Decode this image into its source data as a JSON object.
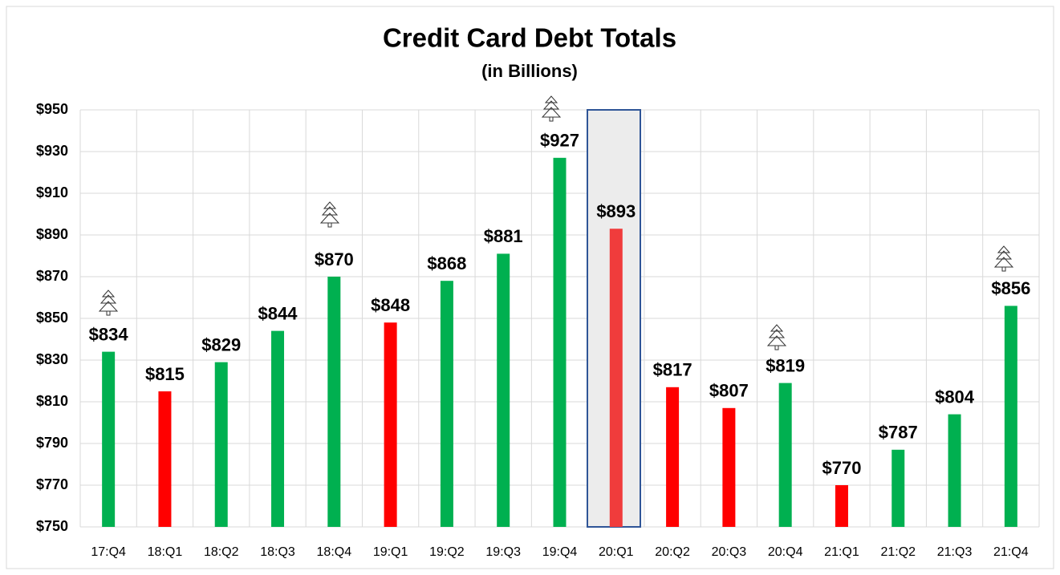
{
  "chart_data": {
    "type": "bar",
    "title": "Credit Card Debt Totals",
    "subtitle": "(in Billions)",
    "categories": [
      "17:Q4",
      "18:Q1",
      "18:Q2",
      "18:Q3",
      "18:Q4",
      "19:Q1",
      "19:Q2",
      "19:Q3",
      "19:Q4",
      "20:Q1",
      "20:Q2",
      "20:Q3",
      "20:Q4",
      "21:Q1",
      "21:Q2",
      "21:Q3",
      "21:Q4"
    ],
    "values": [
      834,
      815,
      829,
      844,
      870,
      848,
      868,
      881,
      927,
      893,
      817,
      807,
      819,
      770,
      787,
      804,
      856
    ],
    "value_labels": [
      "$834",
      "$815",
      "$829",
      "$844",
      "$870",
      "$848",
      "$868",
      "$881",
      "$927",
      "$893",
      "$817",
      "$807",
      "$819",
      "$770",
      "$787",
      "$804",
      "$856"
    ],
    "colors": [
      "#00b050",
      "#ff0000",
      "#00b050",
      "#00b050",
      "#00b050",
      "#ff0000",
      "#00b050",
      "#00b050",
      "#00b050",
      "#f03c3c",
      "#ff0000",
      "#ff0000",
      "#00b050",
      "#ff0000",
      "#00b050",
      "#00b050",
      "#00b050"
    ],
    "ylim": [
      750,
      950
    ],
    "yticks": [
      {
        "value": 750,
        "label": "$750"
      },
      {
        "value": 770,
        "label": "$770"
      },
      {
        "value": 790,
        "label": "$790"
      },
      {
        "value": 810,
        "label": "$810"
      },
      {
        "value": 830,
        "label": "$830"
      },
      {
        "value": 850,
        "label": "$850"
      },
      {
        "value": 870,
        "label": "$870"
      },
      {
        "value": 890,
        "label": "$890"
      },
      {
        "value": 910,
        "label": "$910"
      },
      {
        "value": 930,
        "label": "$930"
      },
      {
        "value": 950,
        "label": "$950"
      }
    ],
    "grid": true
  }
}
